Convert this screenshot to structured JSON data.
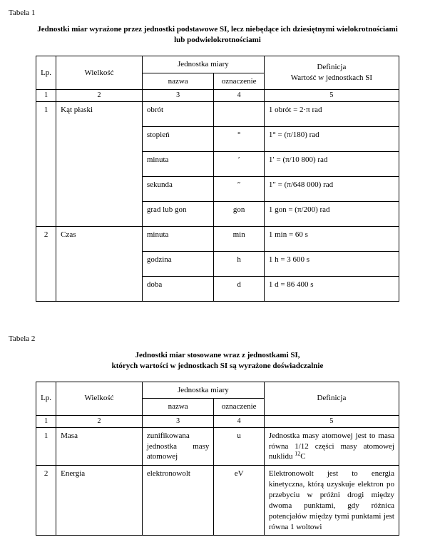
{
  "table1": {
    "label": "Tabela 1",
    "title_line1": "Jednostki miar wyrażone przez jednostki podstawowe SI, lecz niebędące ich dziesiętnymi wielokrotnościami",
    "title_line2": "lub podwielokrotnościami",
    "headers": {
      "lp": "Lp.",
      "wielkosc": "Wielkość",
      "jednostka_miary": "Jednostka miary",
      "nazwa": "nazwa",
      "oznaczenie": "oznaczenie",
      "definicja_line1": "Definicja",
      "definicja_line2": "Wartość w jednostkach SI"
    },
    "colnums": [
      "1",
      "2",
      "3",
      "4",
      "5"
    ],
    "groups": [
      {
        "lp": "1",
        "wielkosc": "Kąt płaski",
        "rows": [
          {
            "nazwa": "obrót",
            "ozn": "",
            "def": "1 obrót = 2·π rad"
          },
          {
            "nazwa": "stopień",
            "ozn": "°",
            "def": "1° = (π/180) rad"
          },
          {
            "nazwa": "minuta",
            "ozn": "′",
            "def": "1′ = (π/10 800) rad"
          },
          {
            "nazwa": "sekunda",
            "ozn": "″",
            "def": "1″ = (π/648 000) rad"
          },
          {
            "nazwa": "grad lub gon",
            "ozn": "gon",
            "def": "1 gon = (π/200) rad"
          }
        ]
      },
      {
        "lp": "2",
        "wielkosc": "Czas",
        "rows": [
          {
            "nazwa": "minuta",
            "ozn": "min",
            "def": "1 min = 60 s"
          },
          {
            "nazwa": "godzina",
            "ozn": "h",
            "def": "1 h = 3 600 s"
          },
          {
            "nazwa": "doba",
            "ozn": "d",
            "def": "1 d = 86 400 s"
          }
        ]
      }
    ]
  },
  "table2": {
    "label": "Tabela 2",
    "title_line1": "Jednostki miar stosowane wraz z jednostkami SI,",
    "title_line2": "których wartości w jednostkach SI są wyrażone doświadczalnie",
    "headers": {
      "lp": "Lp.",
      "wielkosc": "Wielkość",
      "jednostka_miary": "Jednostka miary",
      "nazwa": "nazwa",
      "oznaczenie": "oznaczenie",
      "definicja": "Definicja"
    },
    "colnums": [
      "1",
      "2",
      "3",
      "4",
      "5"
    ],
    "rows": [
      {
        "lp": "1",
        "wielkosc": "Masa",
        "nazwa": "zunifikowana jednostka masy atomowej",
        "ozn": "u",
        "def_html": "Jednostka masy atomowej jest to masa równa 1/12 części masy atomowej nuklidu <sup>12</sup>C"
      },
      {
        "lp": "2",
        "wielkosc": "Energia",
        "nazwa": "elektronowolt",
        "ozn": "eV",
        "def_html": "Elektronowolt jest to energia kinetyczna, którą uzyskuje elektron po przebyciu w próżni drogi między dwoma punktami, gdy różnica potencjałów między tymi punktami jest równa 1 woltowi"
      }
    ]
  }
}
